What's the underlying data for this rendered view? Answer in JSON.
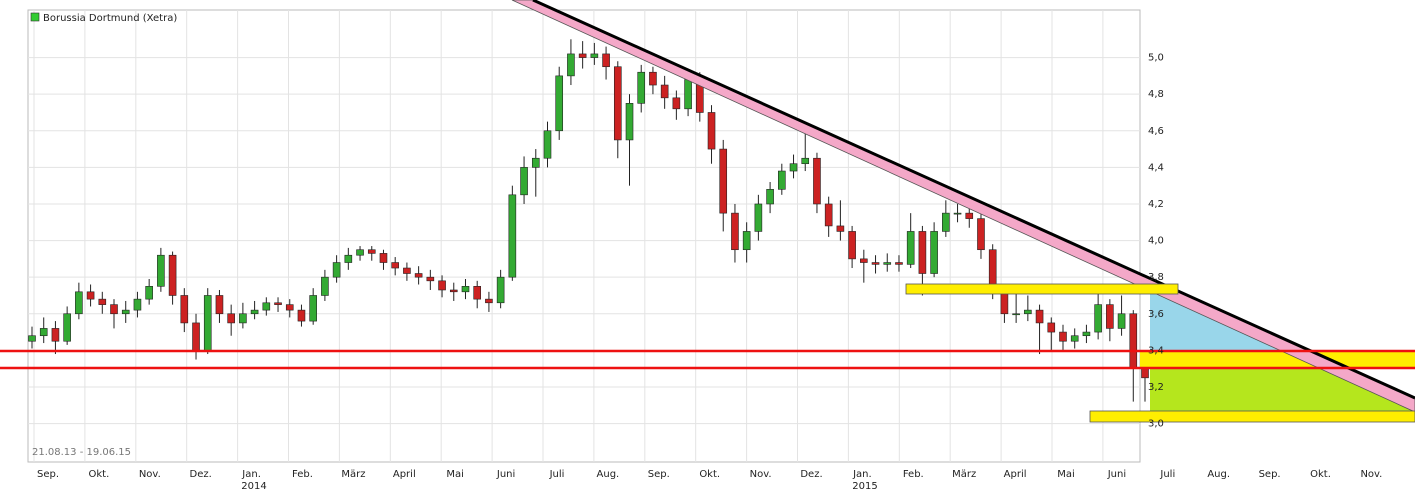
{
  "chart_data": {
    "type": "candlestick",
    "legend_label": "Borussia Dortmund (Xetra)",
    "legend_color": "#33cc33",
    "date_range": "21.08.13 - 19.06.15",
    "categories": [
      "Sep.",
      "Okt.",
      "Nov.",
      "Dez.",
      "Jan.",
      "Feb.",
      "März",
      "April",
      "Mai",
      "Juni",
      "Juli",
      "Aug.",
      "Sep.",
      "Okt.",
      "Nov.",
      "Dez.",
      "Jan.",
      "Feb.",
      "März",
      "April",
      "Mai",
      "Juni",
      "Juli",
      "Aug.",
      "Sep.",
      "Okt.",
      "Nov."
    ],
    "years": [
      "2014",
      "2015"
    ],
    "up_color": "#33aa33",
    "down_color": "#cc2222",
    "grid": true,
    "ylim": [
      2.79,
      5.26
    ],
    "yticks": [
      {
        "value": 3.0,
        "label": "3,0"
      },
      {
        "value": 3.2,
        "label": "3,2"
      },
      {
        "value": 3.4,
        "label": "3,4"
      },
      {
        "value": 3.6,
        "label": "3,6"
      },
      {
        "value": 3.8,
        "label": "3,8"
      },
      {
        "value": 4.0,
        "label": "4,0"
      },
      {
        "value": 4.2,
        "label": "4,2"
      },
      {
        "value": 4.4,
        "label": "4,4"
      },
      {
        "value": 4.6,
        "label": "4,6"
      },
      {
        "value": 4.8,
        "label": "4,8"
      },
      {
        "value": 5.0,
        "label": "5,0"
      }
    ],
    "open": [
      3.45,
      3.48,
      3.52,
      3.45,
      3.6,
      3.72,
      3.68,
      3.65,
      3.6,
      3.62,
      3.68,
      3.75,
      3.92,
      3.7,
      3.55,
      3.4,
      3.7,
      3.6,
      3.55,
      3.6,
      3.62,
      3.66,
      3.65,
      3.62,
      3.56,
      3.7,
      3.8,
      3.88,
      3.92,
      3.95,
      3.93,
      3.88,
      3.85,
      3.82,
      3.8,
      3.78,
      3.73,
      3.72,
      3.75,
      3.68,
      3.66,
      3.8,
      4.25,
      4.4,
      4.45,
      4.6,
      4.9,
      5.02,
      5.0,
      5.02,
      4.95,
      4.55,
      4.75,
      4.92,
      4.85,
      4.78,
      4.72,
      4.88,
      4.7,
      4.5,
      4.15,
      3.95,
      4.05,
      4.2,
      4.28,
      4.38,
      4.42,
      4.45,
      4.2,
      4.08,
      4.05,
      3.9,
      3.88,
      3.87,
      3.88,
      3.87,
      4.05,
      3.82,
      4.05,
      4.15,
      4.15,
      4.12,
      3.95,
      3.72,
      3.6,
      3.6,
      3.62,
      3.55,
      3.5,
      3.45,
      3.48,
      3.5,
      3.65,
      3.52,
      3.6,
      3.3
    ],
    "high": [
      3.53,
      3.58,
      3.56,
      3.64,
      3.77,
      3.76,
      3.72,
      3.68,
      3.67,
      3.72,
      3.79,
      3.96,
      3.94,
      3.74,
      3.6,
      3.74,
      3.73,
      3.65,
      3.66,
      3.67,
      3.69,
      3.69,
      3.68,
      3.65,
      3.74,
      3.84,
      3.92,
      3.96,
      3.97,
      3.97,
      3.95,
      3.91,
      3.88,
      3.86,
      3.84,
      3.81,
      3.77,
      3.79,
      3.78,
      3.72,
      3.84,
      4.3,
      4.46,
      4.5,
      4.65,
      4.95,
      5.1,
      5.09,
      5.08,
      5.06,
      4.98,
      4.8,
      4.96,
      4.95,
      4.9,
      4.82,
      4.94,
      4.92,
      4.74,
      4.55,
      4.2,
      4.1,
      4.25,
      4.32,
      4.42,
      4.47,
      4.65,
      4.48,
      4.24,
      4.22,
      4.08,
      3.95,
      3.92,
      3.93,
      3.92,
      4.15,
      4.08,
      4.1,
      4.22,
      4.2,
      4.22,
      4.15,
      3.98,
      3.76,
      3.72,
      3.7,
      3.65,
      3.58,
      3.54,
      3.52,
      3.54,
      3.74,
      3.68,
      3.7,
      3.62,
      3.34
    ],
    "low": [
      3.41,
      3.44,
      3.38,
      3.43,
      3.57,
      3.64,
      3.6,
      3.52,
      3.55,
      3.58,
      3.65,
      3.72,
      3.65,
      3.5,
      3.35,
      3.38,
      3.55,
      3.48,
      3.52,
      3.57,
      3.59,
      3.61,
      3.58,
      3.53,
      3.54,
      3.67,
      3.77,
      3.84,
      3.89,
      3.89,
      3.84,
      3.81,
      3.78,
      3.76,
      3.73,
      3.69,
      3.67,
      3.68,
      3.63,
      3.61,
      3.63,
      3.78,
      4.2,
      4.24,
      4.4,
      4.55,
      4.85,
      4.94,
      4.96,
      4.88,
      4.45,
      4.3,
      4.7,
      4.8,
      4.72,
      4.66,
      4.68,
      4.65,
      4.42,
      4.05,
      3.88,
      3.88,
      4.0,
      4.15,
      4.25,
      4.34,
      4.38,
      4.15,
      4.02,
      4.0,
      3.85,
      3.77,
      3.82,
      3.83,
      3.83,
      3.85,
      3.7,
      3.8,
      4.02,
      4.1,
      4.07,
      3.9,
      3.68,
      3.55,
      3.55,
      3.56,
      3.38,
      3.4,
      3.4,
      3.41,
      3.44,
      3.46,
      3.45,
      3.48,
      3.12,
      3.12
    ],
    "close": [
      3.48,
      3.52,
      3.45,
      3.6,
      3.72,
      3.68,
      3.65,
      3.6,
      3.62,
      3.68,
      3.75,
      3.92,
      3.7,
      3.55,
      3.4,
      3.7,
      3.6,
      3.55,
      3.6,
      3.62,
      3.66,
      3.65,
      3.62,
      3.56,
      3.7,
      3.8,
      3.88,
      3.92,
      3.95,
      3.93,
      3.88,
      3.85,
      3.82,
      3.8,
      3.78,
      3.73,
      3.72,
      3.75,
      3.68,
      3.66,
      3.8,
      4.25,
      4.4,
      4.45,
      4.6,
      4.9,
      5.02,
      5.0,
      5.02,
      4.95,
      4.55,
      4.75,
      4.92,
      4.85,
      4.78,
      4.72,
      4.88,
      4.7,
      4.5,
      4.15,
      3.95,
      4.05,
      4.2,
      4.28,
      4.38,
      4.42,
      4.45,
      4.2,
      4.08,
      4.05,
      3.9,
      3.88,
      3.87,
      3.88,
      3.87,
      4.05,
      3.82,
      4.05,
      4.15,
      4.15,
      4.12,
      3.95,
      3.72,
      3.6,
      3.6,
      3.62,
      3.55,
      3.5,
      3.45,
      3.48,
      3.5,
      3.65,
      3.52,
      3.6,
      3.3,
      3.25
    ]
  }
}
